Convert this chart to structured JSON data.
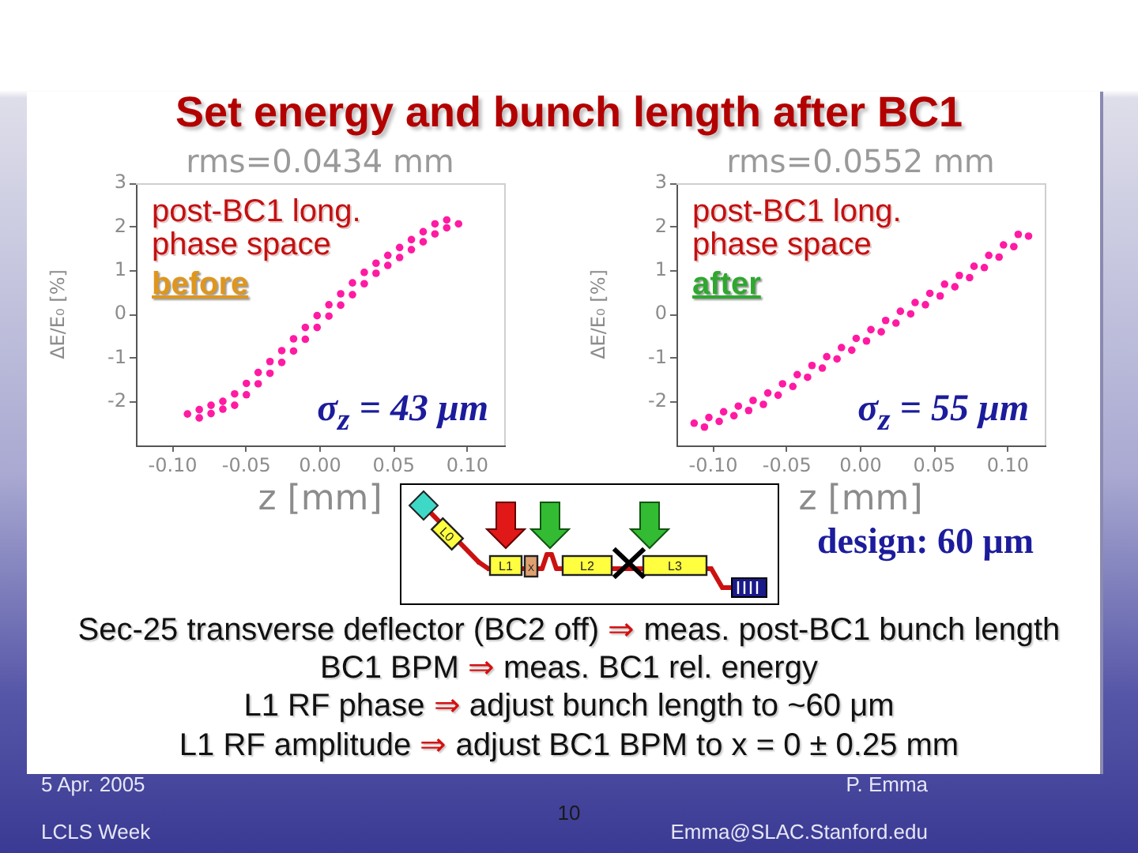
{
  "chart_data": [
    {
      "type": "scatter",
      "title": "rms=0.0434 mm",
      "xlabel": "z [mm]",
      "ylabel": "ΔE/E₀ [%]",
      "xlim": [
        -0.125,
        0.125
      ],
      "xticks": [
        {
          "value": -0.1,
          "label": "-0.10"
        },
        {
          "value": -0.05,
          "label": "-0.05"
        },
        {
          "value": 0,
          "label": "0.00"
        },
        {
          "value": 0.05,
          "label": "0.05"
        },
        {
          "value": 0.1,
          "label": "0.10"
        }
      ],
      "ylim": [
        -3,
        3
      ],
      "yticks": [
        -2,
        -1,
        0,
        1,
        2,
        3
      ],
      "marker": "circle",
      "series": [
        {
          "color": "#ff1aa3",
          "x": [
            -0.09,
            -0.082,
            -0.082,
            -0.074,
            -0.074,
            -0.066,
            -0.066,
            -0.058,
            -0.058,
            -0.05,
            -0.05,
            -0.042,
            -0.042,
            -0.034,
            -0.034,
            -0.026,
            -0.026,
            -0.018,
            -0.018,
            -0.01,
            -0.01,
            -0.002,
            -0.002,
            0.006,
            0.006,
            0.014,
            0.014,
            0.022,
            0.022,
            0.03,
            0.03,
            0.038,
            0.038,
            0.046,
            0.046,
            0.054,
            0.054,
            0.062,
            0.062,
            0.07,
            0.07,
            0.078,
            0.078,
            0.086,
            0.086,
            0.094
          ],
          "values": [
            -2.28,
            -2.37,
            -2.18,
            -2.27,
            -2.08,
            -2.17,
            -1.99,
            -2.08,
            -1.82,
            -1.84,
            -1.58,
            -1.59,
            -1.33,
            -1.35,
            -1.08,
            -1.1,
            -0.83,
            -0.84,
            -0.56,
            -0.57,
            -0.3,
            -0.3,
            -0.03,
            -0.04,
            0.22,
            0.21,
            0.47,
            0.45,
            0.72,
            0.7,
            0.96,
            0.94,
            1.17,
            1.12,
            1.35,
            1.3,
            1.53,
            1.48,
            1.71,
            1.66,
            1.89,
            1.84,
            2.07,
            1.98,
            2.16,
            2.07
          ]
        }
      ],
      "annotations": [
        "post-BC1 long. phase space",
        "before",
        "σ$_{z}$ = 43 μm"
      ]
    },
    {
      "type": "scatter",
      "title": "rms=0.0552 mm",
      "xlabel": "z [mm]",
      "ylabel": "ΔE/E₀ [%]",
      "xlim": [
        -0.125,
        0.125
      ],
      "xticks": [
        {
          "value": -0.1,
          "label": "-0.10"
        },
        {
          "value": -0.05,
          "label": "-0.05"
        },
        {
          "value": 0,
          "label": "0.00"
        },
        {
          "value": 0.05,
          "label": "0.05"
        },
        {
          "value": 0.1,
          "label": "0.10"
        }
      ],
      "ylim": [
        -3,
        3
      ],
      "yticks": [
        -2,
        -1,
        0,
        1,
        2,
        3
      ],
      "marker": "circle",
      "series": [
        {
          "color": "#ff1aa3",
          "x": [
            -0.113,
            -0.106,
            -0.103,
            -0.096,
            -0.093,
            -0.086,
            -0.083,
            -0.076,
            -0.073,
            -0.066,
            -0.063,
            -0.056,
            -0.053,
            -0.046,
            -0.043,
            -0.036,
            -0.033,
            -0.026,
            -0.023,
            -0.016,
            -0.013,
            -0.006,
            -0.003,
            0.004,
            0.007,
            0.014,
            0.017,
            0.024,
            0.027,
            0.034,
            0.037,
            0.044,
            0.047,
            0.054,
            0.057,
            0.064,
            0.067,
            0.074,
            0.077,
            0.084,
            0.087,
            0.094,
            0.097,
            0.104,
            0.107,
            0.114
          ],
          "values": [
            -2.49,
            -2.58,
            -2.36,
            -2.45,
            -2.23,
            -2.32,
            -2.1,
            -2.2,
            -1.97,
            -2.06,
            -1.8,
            -1.85,
            -1.59,
            -1.65,
            -1.38,
            -1.44,
            -1.17,
            -1.23,
            -0.97,
            -1.02,
            -0.76,
            -0.82,
            -0.55,
            -0.61,
            -0.35,
            -0.4,
            -0.14,
            -0.2,
            0.07,
            0.01,
            0.27,
            0.22,
            0.48,
            0.42,
            0.69,
            0.63,
            0.89,
            0.84,
            1.1,
            1.07,
            1.35,
            1.31,
            1.59,
            1.55,
            1.83,
            1.79
          ]
        }
      ],
      "annotations": [
        "post-BC1 long. phase space",
        "after",
        "σ$_{z}$ = 55 μm"
      ]
    },
    {
      "type": "other",
      "title": "Set energy and bunch length after BC1",
      "annotations": [
        "L0",
        "L1",
        "X",
        "L2",
        "L3",
        "design: 60 μm",
        "Sec-25 transverse deflector (BC2 off) ⇒ meas. post-BC1 bunch length",
        "BC1 BPM ⇒ meas. BC1 rel. energy",
        "L1 RF phase ⇒ adjust bunch length to ~60 μm",
        "L1 RF amplitude ⇒ adjust BC1 BPM to x = 0 ± 0.25 mm",
        "5 Apr. 2005",
        "LCLS Week",
        "10",
        "P. Emma",
        "Emma@SLAC.Stanford.edu"
      ]
    }
  ]
}
